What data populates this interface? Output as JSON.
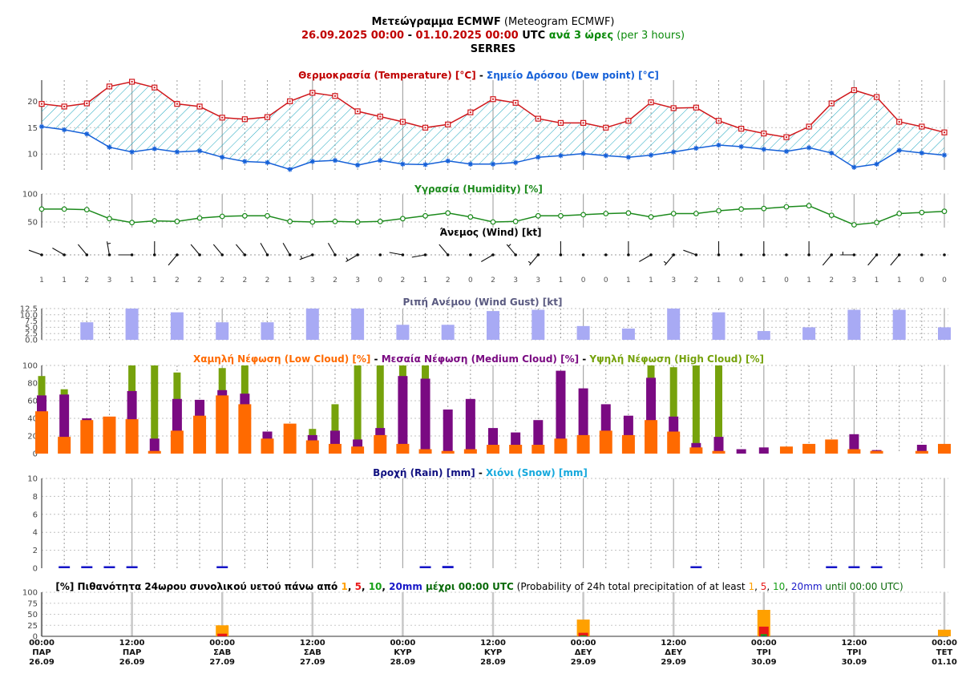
{
  "header": {
    "title_bold": "Μετεώγραμμα ECMWF",
    "title_normal": " (Meteogram ECMWF)",
    "start": "26.09.2025 00:00",
    "dash": " - ",
    "end": "01.10.2025 00:00",
    "utc": " UTC",
    "step_bold": " ανά 3 ώρες",
    "step_normal": " (per 3 hours)",
    "location": "SERRES"
  },
  "titles": {
    "temp_a": "Θερμοκρασία (Temperature) [°C]",
    "temp_sep": " - ",
    "temp_b": "Σημείο Δρόσου (Dew point) [°C]",
    "humidity": "Υγρασία (Humidity) [%]",
    "wind": "Άνεμος (Wind) [kt]",
    "gust": "Ριπή Ανέμου (Wind Gust) [kt]",
    "cloud_low": "Χαμηλή Νέφωση (Low Cloud) [%]",
    "cloud_mid": "Μεσαία Νέφωση (Medium Cloud) [%]",
    "cloud_high": "Υψηλή Νέφωση (High Cloud) [%]",
    "rain": "Βροχή (Rain) [mm]",
    "snow": "Χιόνι (Snow) [mm]",
    "prob_gr": "[%] Πιθανότητα 24ωρου συνολικού υετού πάνω από ",
    "prob_t1": "1",
    "prob_t5": "5",
    "prob_t10": "10",
    "prob_t20": "20mm",
    "prob_until_gr": " μέχρι 00:00 UTC",
    "prob_en": " (Probability of 24h total precipitation of at least ",
    "prob_en_t20": "20mm",
    "prob_en_until": " until 00:00 UTC)"
  },
  "colors": {
    "temperature": "#d0181c",
    "dewpoint": "#1560d8",
    "hatch": "#21a8c0",
    "humidity": "#1c8a1c",
    "gust": "#a8aaf4",
    "low_cloud": "#ff6a00",
    "mid_cloud": "#7a0a82",
    "high_cloud": "#76a20c",
    "rain": "#1515c8",
    "snow": "#15a8dc",
    "p1": "#ffa000",
    "p5": "#e81818",
    "p10": "#18a018",
    "p20": "#1818c8",
    "header_red": "#c00000",
    "header_green": "#0a8a0a",
    "rain_title": "#101080"
  },
  "chart_data": [
    {
      "type": "line",
      "title": "Θερμοκρασία (Temperature) [°C] - Σημείο Δρόσου (Dew point) [°C]",
      "ylim": [
        7,
        24
      ],
      "yticks": [
        10,
        15,
        20
      ],
      "series": [
        {
          "name": "Θερμοκρασία (Temperature) [°C]",
          "values": [
            19.5,
            19.0,
            19.6,
            22.8,
            23.7,
            22.6,
            19.5,
            19.0,
            16.9,
            16.6,
            17.0,
            20.0,
            21.6,
            21.0,
            18.1,
            17.1,
            16.1,
            15.0,
            15.6,
            17.9,
            20.4,
            19.7,
            16.7,
            15.9,
            15.9,
            15.0,
            16.3,
            19.8,
            18.7,
            18.8,
            16.3,
            14.8,
            13.9,
            13.2,
            15.2,
            19.6,
            22.1,
            20.8,
            16.1,
            15.2,
            14.1
          ]
        },
        {
          "name": "Σημείο Δρόσου (Dew point) [°C]",
          "values": [
            15.2,
            14.6,
            13.8,
            11.3,
            10.4,
            11.0,
            10.4,
            10.6,
            9.4,
            8.6,
            8.4,
            7.1,
            8.6,
            8.8,
            7.9,
            8.8,
            8.1,
            8.0,
            8.7,
            8.1,
            8.1,
            8.4,
            9.4,
            9.7,
            10.1,
            9.7,
            9.4,
            9.8,
            10.4,
            11.1,
            11.7,
            11.4,
            10.9,
            10.5,
            11.2,
            10.2,
            7.5,
            8.1,
            10.7,
            10.2,
            9.8
          ]
        }
      ]
    },
    {
      "type": "line",
      "title": "Υγρασία (Humidity) [%]",
      "ylim": [
        40,
        100
      ],
      "yticks": [
        50,
        100
      ],
      "series": [
        {
          "name": "Υγρασία (Humidity) [%]",
          "values": [
            73,
            73,
            72,
            56,
            49,
            52,
            51,
            57,
            60,
            61,
            61,
            51,
            50,
            51,
            50,
            51,
            56,
            61,
            66,
            59,
            50,
            51,
            61,
            61,
            63,
            65,
            66,
            59,
            65,
            65,
            70,
            73,
            74,
            77,
            79,
            62,
            45,
            49,
            65,
            67,
            69
          ]
        }
      ]
    },
    {
      "type": "scatter",
      "title": "Άνεμος (Wind) [kt]",
      "speed_kt": [
        1,
        1,
        2,
        3,
        1,
        1,
        2,
        2,
        2,
        2,
        2,
        1,
        3,
        2,
        3,
        0,
        2,
        1,
        2,
        0,
        2,
        3,
        3,
        1,
        0,
        0,
        1,
        1,
        3,
        2,
        1,
        0,
        1,
        0,
        1,
        2,
        3,
        1,
        1,
        0,
        0
      ],
      "direction_to_deg": [
        290,
        300,
        320,
        350,
        270,
        0,
        220,
        320,
        320,
        320,
        330,
        330,
        250,
        330,
        240,
        0,
        280,
        260,
        320,
        0,
        240,
        320,
        220,
        0,
        0,
        0,
        0,
        240,
        220,
        290,
        0,
        0,
        0,
        0,
        0,
        220,
        270,
        220,
        220,
        0,
        0
      ]
    },
    {
      "type": "bar",
      "title": "Ριπή Ανέμου (Wind Gust) [kt]",
      "ylim": [
        0,
        12.5
      ],
      "yticks": [
        0.0,
        2.5,
        5.0,
        7.5,
        10.0,
        12.5
      ],
      "values": [
        0,
        0,
        7.0,
        0,
        12.5,
        0,
        11.0,
        0,
        7.0,
        0,
        7.0,
        0,
        12.5,
        0,
        12.5,
        0,
        6.0,
        0,
        6.0,
        0,
        11.5,
        0,
        12.0,
        0,
        5.5,
        0,
        4.5,
        0,
        12.5,
        0,
        11.0,
        0,
        3.5,
        0,
        5.0,
        0,
        12.0,
        0,
        12.0,
        0,
        5.0
      ]
    },
    {
      "type": "bar",
      "title": "Χαμηλή Νέφωση (Low Cloud) [%] - Μεσαία Νέφωση (Medium Cloud) [%] - Υψηλή Νέφωση (High Cloud) [%]",
      "ylim": [
        0,
        100
      ],
      "yticks": [
        0,
        20,
        40,
        60,
        80,
        100
      ],
      "series": [
        {
          "name": "Υψηλή Νέφωση (High Cloud) [%]",
          "values": [
            88,
            73,
            0,
            0,
            100,
            100,
            92,
            0,
            97,
            100,
            0,
            0,
            28,
            56,
            100,
            100,
            100,
            100,
            0,
            0,
            0,
            0,
            0,
            0,
            0,
            0,
            0,
            100,
            98,
            100,
            100,
            0,
            0,
            0,
            0,
            0,
            0,
            0,
            0,
            0,
            0
          ]
        },
        {
          "name": "Μεσαία Νέφωση (Medium Cloud) [%]",
          "values": [
            66,
            67,
            40,
            0,
            71,
            17,
            62,
            61,
            72,
            68,
            25,
            0,
            21,
            26,
            16,
            29,
            88,
            85,
            50,
            62,
            29,
            24,
            38,
            94,
            74,
            56,
            43,
            86,
            42,
            12,
            19,
            5,
            7,
            0,
            0,
            0,
            22,
            4,
            0,
            10,
            0
          ]
        },
        {
          "name": "Χαμηλή Νέφωση (Low Cloud) [%]",
          "values": [
            48,
            19,
            38,
            42,
            39,
            3,
            26,
            43,
            66,
            56,
            17,
            34,
            15,
            11,
            8,
            21,
            11,
            5,
            3,
            5,
            10,
            10,
            10,
            17,
            21,
            26,
            21,
            38,
            25,
            7,
            3,
            0,
            0,
            8,
            11,
            16,
            5,
            3,
            0,
            3,
            11
          ]
        }
      ]
    },
    {
      "type": "bar",
      "title": "Βροχή (Rain) [mm] - Χιόνι (Snow) [mm]",
      "ylim": [
        0,
        10
      ],
      "yticks": [
        0,
        2,
        4,
        6,
        8,
        10
      ],
      "series": [
        {
          "name": "Βροχή (Rain) [mm]",
          "values": [
            0,
            0.15,
            0.1,
            0.2,
            0.1,
            0,
            0,
            0,
            0.1,
            0,
            0,
            0,
            0,
            0,
            0,
            0,
            0,
            0.1,
            0.25,
            0,
            0,
            0,
            0,
            0,
            0,
            0,
            0,
            0,
            0,
            0.1,
            0,
            0,
            0,
            0,
            0,
            0.15,
            0.1,
            0.1,
            0,
            0,
            0
          ]
        },
        {
          "name": "Χιόνι (Snow) [mm]",
          "values": [
            0,
            0,
            0,
            0,
            0,
            0,
            0,
            0,
            0,
            0,
            0,
            0,
            0,
            0,
            0,
            0,
            0,
            0,
            0,
            0,
            0,
            0,
            0,
            0,
            0,
            0,
            0,
            0,
            0,
            0,
            0,
            0,
            0,
            0,
            0,
            0,
            0,
            0,
            0,
            0,
            0
          ]
        }
      ]
    },
    {
      "type": "bar",
      "title": "[%] Πιθανότητα 24ωρου συνολικού υετού",
      "ylim": [
        0,
        100
      ],
      "yticks": [
        0,
        25,
        50,
        75,
        100
      ],
      "categories": [
        "27.09",
        "29.09",
        "30.09",
        "01.10"
      ],
      "series": [
        {
          "name": "1",
          "values": [
            25,
            38,
            60,
            15
          ]
        },
        {
          "name": "5",
          "values": [
            6,
            8,
            22,
            0
          ]
        },
        {
          "name": "10",
          "values": [
            0,
            2,
            5,
            0
          ]
        },
        {
          "name": "20mm",
          "values": [
            0,
            0,
            1,
            0
          ]
        }
      ]
    }
  ],
  "wind_labels": [
    "1",
    "1",
    "2",
    "3",
    "1",
    "1",
    "2",
    "2",
    "2",
    "2",
    "2",
    "1",
    "3",
    "2",
    "3",
    "0",
    "2",
    "1",
    "2",
    "0",
    "2",
    "3",
    "3",
    "1",
    "0",
    "0",
    "1",
    "1",
    "3",
    "2",
    "1",
    "0",
    "1",
    "0",
    "1",
    "2",
    "3",
    "1",
    "1",
    "0",
    "0"
  ],
  "xaxis": [
    {
      "time": "00:00",
      "day": "ΠΑΡ",
      "date": "26.09"
    },
    {
      "time": "12:00",
      "day": "ΠΑΡ",
      "date": "26.09"
    },
    {
      "time": "00:00",
      "day": "ΣΑΒ",
      "date": "27.09"
    },
    {
      "time": "12:00",
      "day": "ΣΑΒ",
      "date": "27.09"
    },
    {
      "time": "00:00",
      "day": "ΚΥΡ",
      "date": "28.09"
    },
    {
      "time": "12:00",
      "day": "ΚΥΡ",
      "date": "28.09"
    },
    {
      "time": "00:00",
      "day": "ΔΕΥ",
      "date": "29.09"
    },
    {
      "time": "12:00",
      "day": "ΔΕΥ",
      "date": "29.09"
    },
    {
      "time": "00:00",
      "day": "ΤΡΙ",
      "date": "30.09"
    },
    {
      "time": "12:00",
      "day": "ΤΡΙ",
      "date": "30.09"
    },
    {
      "time": "00:00",
      "day": "ΤΕΤ",
      "date": "01.10"
    }
  ]
}
